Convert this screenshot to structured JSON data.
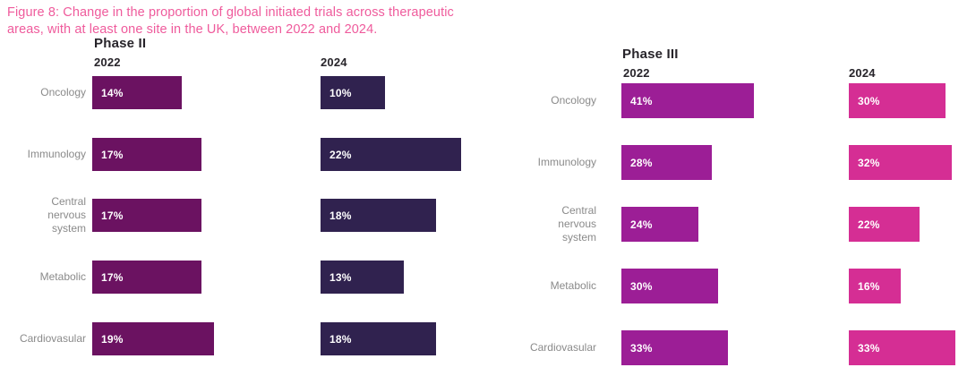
{
  "title": "Figure 8: Change in the proportion of global initiated trials across therapeutic\nareas, with at least one site in the UK, between 2022 and 2024.",
  "colors": {
    "title_pink": "#EF5B9C",
    "header_dark": "#27242A",
    "label_gray": "#8A8A8A",
    "bar_text_white": "#FFFFFF",
    "phase2_2022": "#6B1261",
    "phase2_2024": "#30224F",
    "phase3_2022": "#9C1E96",
    "phase3_2024": "#D52E94"
  },
  "chart_data": [
    {
      "type": "bar",
      "orientation": "horizontal",
      "title": "Phase II",
      "categories": [
        "Oncology",
        "Immunology",
        "Central\nnervous\nsystem",
        "Metabolic",
        "Cardiovasular"
      ],
      "series": [
        {
          "name": "2022",
          "values": [
            14,
            17,
            17,
            17,
            19
          ],
          "color": "#6B1261"
        },
        {
          "name": "2024",
          "values": [
            10,
            22,
            18,
            13,
            18
          ],
          "color": "#30224F"
        }
      ],
      "value_suffix": "%",
      "data_labels": true,
      "axis": "none",
      "grid": false,
      "legend": "none"
    },
    {
      "type": "bar",
      "orientation": "horizontal",
      "title": "Phase III",
      "categories": [
        "Oncology",
        "Immunology",
        "Central\nnervous\nsystem",
        "Metabolic",
        "Cardiovasular"
      ],
      "series": [
        {
          "name": "2022",
          "values": [
            41,
            28,
            24,
            30,
            33
          ],
          "color": "#9C1E96"
        },
        {
          "name": "2024",
          "values": [
            30,
            32,
            22,
            16,
            33
          ],
          "color": "#D52E94"
        }
      ],
      "value_suffix": "%",
      "data_labels": true,
      "axis": "none",
      "grid": false,
      "legend": "none"
    }
  ]
}
